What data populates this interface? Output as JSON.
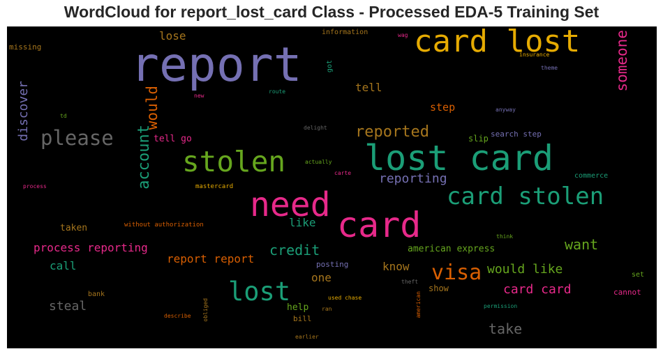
{
  "chart_data": {
    "type": "wordcloud",
    "title": "WordCloud for report_lost_card Class - Processed EDA-5 Training Set",
    "background": "#000000",
    "words": [
      {
        "text": "report",
        "color": "#7570b3"
      },
      {
        "text": "card lost",
        "color": "#e6ab02"
      },
      {
        "text": "lost card",
        "color": "#1b9e77"
      },
      {
        "text": "card",
        "color": "#e7298a"
      },
      {
        "text": "need",
        "color": "#e7298a"
      },
      {
        "text": "stolen",
        "color": "#66a61e"
      },
      {
        "text": "card stolen",
        "color": "#1b9e77"
      },
      {
        "text": "lost",
        "color": "#1b9e77"
      },
      {
        "text": "please",
        "color": "#666666"
      },
      {
        "text": "visa",
        "color": "#d95f02"
      },
      {
        "text": "account",
        "color": "#1b9e77"
      },
      {
        "text": "would",
        "color": "#d95f02"
      },
      {
        "text": "reported",
        "color": "#a6761d"
      },
      {
        "text": "someone",
        "color": "#e7298a"
      },
      {
        "text": "discover",
        "color": "#7570b3"
      },
      {
        "text": "want",
        "color": "#66a61e"
      },
      {
        "text": "take",
        "color": "#666666"
      },
      {
        "text": "credit",
        "color": "#1b9e77"
      },
      {
        "text": "reporting",
        "color": "#7570b3"
      },
      {
        "text": "would like",
        "color": "#66a61e"
      },
      {
        "text": "card card",
        "color": "#e7298a"
      },
      {
        "text": "steal",
        "color": "#666666"
      },
      {
        "text": "process reporting",
        "color": "#e7298a"
      },
      {
        "text": "call",
        "color": "#1b9e77"
      },
      {
        "text": "report report",
        "color": "#d95f02"
      },
      {
        "text": "know",
        "color": "#a6761d"
      },
      {
        "text": "tell",
        "color": "#a6761d"
      },
      {
        "text": "lose",
        "color": "#a6761d"
      },
      {
        "text": "like",
        "color": "#1b9e77"
      },
      {
        "text": "one",
        "color": "#a6761d"
      },
      {
        "text": "step",
        "color": "#d95f02"
      },
      {
        "text": "american express",
        "color": "#66a61e"
      },
      {
        "text": "taken",
        "color": "#a6761d"
      },
      {
        "text": "tell go",
        "color": "#e7298a"
      },
      {
        "text": "help",
        "color": "#66a61e"
      },
      {
        "text": "slip",
        "color": "#66a61e"
      },
      {
        "text": "search step",
        "color": "#7570b3"
      },
      {
        "text": "show",
        "color": "#a6761d"
      },
      {
        "text": "bill",
        "color": "#a6761d"
      },
      {
        "text": "posting",
        "color": "#7570b3"
      },
      {
        "text": "missing",
        "color": "#a6761d"
      },
      {
        "text": "information",
        "color": "#a6761d"
      },
      {
        "text": "bank",
        "color": "#a6761d"
      },
      {
        "text": "cannot",
        "color": "#e7298a"
      },
      {
        "text": "set",
        "color": "#66a61e"
      },
      {
        "text": "commerce",
        "color": "#1b9e77"
      },
      {
        "text": "got",
        "color": "#1b9e77"
      },
      {
        "text": "mastercard",
        "color": "#e6ab02"
      },
      {
        "text": "without authorization",
        "color": "#d95f02"
      },
      {
        "text": "insurance",
        "color": "#e6ab02"
      },
      {
        "text": "theme",
        "color": "#7570b3"
      },
      {
        "text": "wag",
        "color": "#e7298a"
      },
      {
        "text": "anyway",
        "color": "#7570b3"
      },
      {
        "text": "route",
        "color": "#1b9e77"
      },
      {
        "text": "new",
        "color": "#e7298a"
      },
      {
        "text": "td",
        "color": "#66a61e"
      },
      {
        "text": "delight",
        "color": "#666666"
      },
      {
        "text": "actually",
        "color": "#66a61e"
      },
      {
        "text": "carte",
        "color": "#e7298a"
      },
      {
        "text": "process",
        "color": "#e7298a"
      },
      {
        "text": "think",
        "color": "#66a61e"
      },
      {
        "text": "theft",
        "color": "#666666"
      },
      {
        "text": "used chase",
        "color": "#e6ab02"
      },
      {
        "text": "ran",
        "color": "#a6761d"
      },
      {
        "text": "permission",
        "color": "#1b9e77"
      },
      {
        "text": "describe",
        "color": "#d95f02"
      },
      {
        "text": "obliged",
        "color": "#a6761d"
      },
      {
        "text": "american",
        "color": "#d95f02"
      },
      {
        "text": "earlier",
        "color": "#a6761d"
      }
    ]
  }
}
